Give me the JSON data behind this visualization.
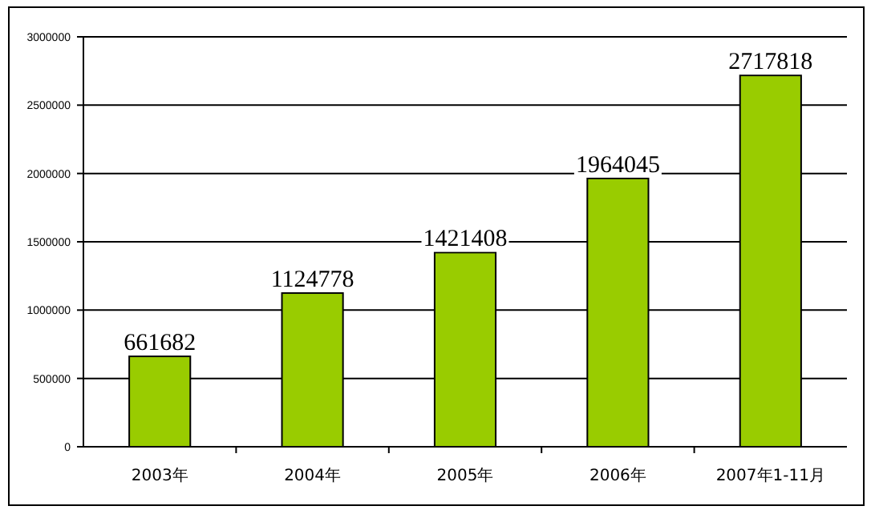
{
  "chart_data": {
    "type": "bar",
    "categories": [
      "2003年",
      "2004年",
      "2005年",
      "2006年",
      "2007年1-11月"
    ],
    "values": [
      661682,
      1124778,
      1421408,
      1964045,
      2717818
    ],
    "color": "#99cc00",
    "ylim": [
      0,
      3000000
    ],
    "yticks": [
      0,
      500000,
      1000000,
      1500000,
      2000000,
      2500000,
      3000000
    ],
    "grid": "y",
    "data_labels": true
  }
}
